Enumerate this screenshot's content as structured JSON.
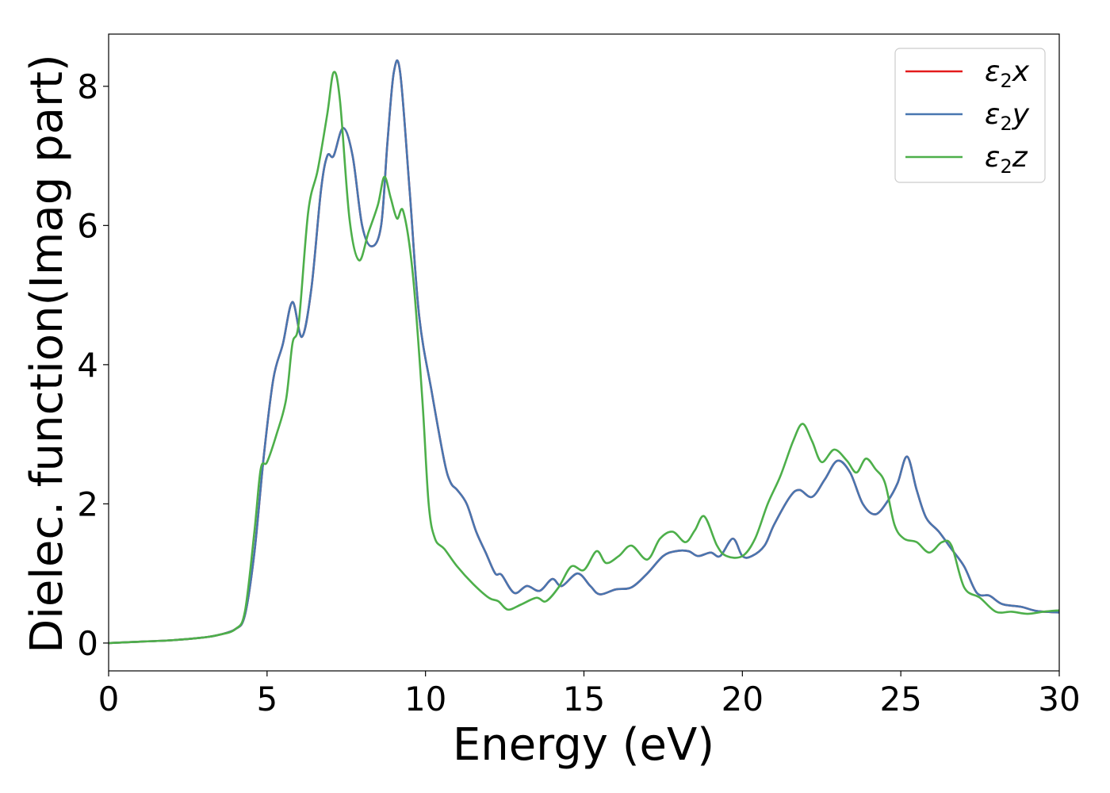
{
  "chart_data": {
    "type": "line",
    "xlabel": "Energy (eV)",
    "ylabel": "Dielec. function(Imag part)",
    "xlim": [
      0,
      30
    ],
    "ylim": [
      -0.4,
      8.75
    ],
    "xticks": [
      0,
      5,
      10,
      15,
      20,
      25,
      30
    ],
    "yticks": [
      0,
      2,
      4,
      6,
      8
    ],
    "grid": false,
    "legend_position": "top-right",
    "series": [
      {
        "name": "ε2x",
        "legend": {
          "base": "ε",
          "sub": "2",
          "tail": "x"
        },
        "color": "#e41a1c",
        "x": [
          0,
          1,
          2,
          3,
          3.5,
          4,
          4.3,
          4.6,
          4.9,
          5.2,
          5.5,
          5.8,
          6.1,
          6.4,
          6.7,
          6.9,
          7.1,
          7.4,
          7.7,
          8.0,
          8.3,
          8.6,
          8.8,
          9.0,
          9.2,
          9.5,
          9.8,
          10.2,
          10.6,
          10.8,
          11.0,
          11.3,
          11.6,
          11.9,
          12.2,
          12.4,
          12.8,
          13.2,
          13.6,
          14.0,
          14.3,
          14.8,
          15.2,
          15.5,
          16.0,
          16.5,
          17.0,
          17.5,
          17.9,
          18.3,
          18.6,
          19.0,
          19.3,
          19.7,
          20.0,
          20.3,
          20.7,
          21.0,
          21.5,
          21.8,
          22.2,
          22.6,
          23.0,
          23.4,
          23.8,
          24.2,
          24.6,
          24.9,
          25.2,
          25.5,
          25.8,
          26.2,
          26.6,
          27.0,
          27.4,
          27.8,
          28.2,
          28.8,
          29.3,
          30.0
        ],
        "y": [
          0,
          0.02,
          0.04,
          0.08,
          0.12,
          0.2,
          0.4,
          1.3,
          2.7,
          3.8,
          4.3,
          4.9,
          4.4,
          5.1,
          6.5,
          7.0,
          7.0,
          7.4,
          7.0,
          6.0,
          5.7,
          6.0,
          7.2,
          8.2,
          8.2,
          6.5,
          4.7,
          3.6,
          2.6,
          2.3,
          2.2,
          2.0,
          1.6,
          1.3,
          1.0,
          0.98,
          0.72,
          0.82,
          0.75,
          0.92,
          0.82,
          1.0,
          0.82,
          0.7,
          0.77,
          0.8,
          1.0,
          1.25,
          1.32,
          1.32,
          1.25,
          1.3,
          1.25,
          1.5,
          1.25,
          1.25,
          1.4,
          1.7,
          2.1,
          2.2,
          2.1,
          2.35,
          2.62,
          2.45,
          2.0,
          1.85,
          2.05,
          2.3,
          2.68,
          2.2,
          1.8,
          1.6,
          1.35,
          1.1,
          0.72,
          0.68,
          0.56,
          0.52,
          0.46,
          0.44
        ]
      },
      {
        "name": "ε2y",
        "legend": {
          "base": "ε",
          "sub": "2",
          "tail": "y"
        },
        "color": "#4876b0",
        "x": [
          0,
          1,
          2,
          3,
          3.5,
          4,
          4.3,
          4.6,
          4.9,
          5.2,
          5.5,
          5.8,
          6.1,
          6.4,
          6.7,
          6.9,
          7.1,
          7.4,
          7.7,
          8.0,
          8.3,
          8.6,
          8.8,
          9.0,
          9.2,
          9.5,
          9.8,
          10.2,
          10.6,
          10.8,
          11.0,
          11.3,
          11.6,
          11.9,
          12.2,
          12.4,
          12.8,
          13.2,
          13.6,
          14.0,
          14.3,
          14.8,
          15.2,
          15.5,
          16.0,
          16.5,
          17.0,
          17.5,
          17.9,
          18.3,
          18.6,
          19.0,
          19.3,
          19.7,
          20.0,
          20.3,
          20.7,
          21.0,
          21.5,
          21.8,
          22.2,
          22.6,
          23.0,
          23.4,
          23.8,
          24.2,
          24.6,
          24.9,
          25.2,
          25.5,
          25.8,
          26.2,
          26.6,
          27.0,
          27.4,
          27.8,
          28.2,
          28.8,
          29.3,
          30.0
        ],
        "y": [
          0,
          0.02,
          0.04,
          0.08,
          0.12,
          0.2,
          0.4,
          1.3,
          2.7,
          3.8,
          4.3,
          4.9,
          4.4,
          5.1,
          6.5,
          7.0,
          7.0,
          7.4,
          7.0,
          6.0,
          5.7,
          6.0,
          7.2,
          8.2,
          8.2,
          6.5,
          4.7,
          3.6,
          2.6,
          2.3,
          2.2,
          2.0,
          1.6,
          1.3,
          1.0,
          0.98,
          0.72,
          0.82,
          0.75,
          0.92,
          0.82,
          1.0,
          0.82,
          0.7,
          0.77,
          0.8,
          1.0,
          1.25,
          1.32,
          1.32,
          1.25,
          1.3,
          1.25,
          1.5,
          1.25,
          1.25,
          1.4,
          1.7,
          2.1,
          2.2,
          2.1,
          2.35,
          2.62,
          2.45,
          2.0,
          1.85,
          2.05,
          2.3,
          2.68,
          2.2,
          1.8,
          1.6,
          1.35,
          1.1,
          0.72,
          0.68,
          0.56,
          0.52,
          0.46,
          0.44
        ]
      },
      {
        "name": "ε2z",
        "legend": {
          "base": "ε",
          "sub": "2",
          "tail": "z"
        },
        "color": "#4daf4a",
        "x": [
          0,
          1,
          2,
          3,
          3.5,
          4,
          4.3,
          4.6,
          4.8,
          5.0,
          5.3,
          5.6,
          5.8,
          6.0,
          6.3,
          6.6,
          6.9,
          7.1,
          7.3,
          7.6,
          7.9,
          8.2,
          8.5,
          8.7,
          8.9,
          9.1,
          9.3,
          9.6,
          9.9,
          10.1,
          10.3,
          10.6,
          11.0,
          11.5,
          12.0,
          12.3,
          12.6,
          13.0,
          13.5,
          13.8,
          14.2,
          14.6,
          15.0,
          15.4,
          15.7,
          16.1,
          16.5,
          17.0,
          17.4,
          17.8,
          18.2,
          18.5,
          18.8,
          19.2,
          19.5,
          20.0,
          20.4,
          20.8,
          21.2,
          21.6,
          21.9,
          22.2,
          22.5,
          22.9,
          23.3,
          23.6,
          23.9,
          24.2,
          24.5,
          24.8,
          25.1,
          25.5,
          25.9,
          26.3,
          26.6,
          27.0,
          27.5,
          28.0,
          28.5,
          29.0,
          29.5,
          30.0
        ],
        "y": [
          0,
          0.02,
          0.04,
          0.08,
          0.12,
          0.2,
          0.45,
          1.6,
          2.5,
          2.6,
          3.0,
          3.5,
          4.3,
          4.6,
          6.2,
          6.8,
          7.6,
          8.2,
          7.8,
          6.1,
          5.5,
          5.9,
          6.3,
          6.7,
          6.4,
          6.1,
          6.2,
          5.3,
          3.5,
          2.0,
          1.5,
          1.35,
          1.1,
          0.85,
          0.65,
          0.6,
          0.48,
          0.55,
          0.65,
          0.6,
          0.8,
          1.1,
          1.05,
          1.32,
          1.15,
          1.25,
          1.4,
          1.2,
          1.5,
          1.6,
          1.45,
          1.62,
          1.82,
          1.4,
          1.25,
          1.25,
          1.5,
          2.0,
          2.4,
          2.9,
          3.15,
          2.9,
          2.6,
          2.78,
          2.62,
          2.45,
          2.65,
          2.5,
          2.3,
          1.7,
          1.5,
          1.45,
          1.3,
          1.45,
          1.4,
          0.8,
          0.65,
          0.45,
          0.45,
          0.42,
          0.45,
          0.47
        ]
      }
    ]
  }
}
